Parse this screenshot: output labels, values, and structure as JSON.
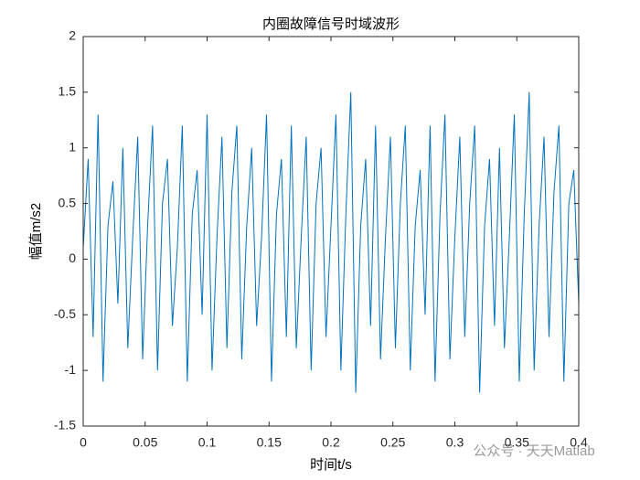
{
  "chart_data": {
    "type": "line",
    "title": "内圈故障信号时域波形",
    "xlabel": "时间t/s",
    "ylabel": "幅值m/s2",
    "watermark": "公众号 · 天天Matlab",
    "x": [
      0,
      0.004,
      0.008,
      0.012,
      0.016,
      0.02,
      0.024,
      0.028,
      0.032,
      0.036,
      0.04,
      0.044,
      0.048,
      0.052,
      0.056,
      0.06,
      0.064,
      0.068,
      0.072,
      0.076,
      0.08,
      0.084,
      0.088,
      0.092,
      0.096,
      0.1,
      0.104,
      0.108,
      0.112,
      0.116,
      0.12,
      0.124,
      0.128,
      0.132,
      0.136,
      0.14,
      0.144,
      0.148,
      0.152,
      0.156,
      0.16,
      0.164,
      0.168,
      0.172,
      0.176,
      0.18,
      0.184,
      0.188,
      0.192,
      0.196,
      0.2,
      0.204,
      0.208,
      0.212,
      0.216,
      0.22,
      0.224,
      0.228,
      0.232,
      0.236,
      0.24,
      0.244,
      0.248,
      0.252,
      0.256,
      0.26,
      0.264,
      0.268,
      0.272,
      0.276,
      0.28,
      0.284,
      0.288,
      0.292,
      0.296,
      0.3,
      0.304,
      0.308,
      0.312,
      0.316,
      0.32,
      0.324,
      0.328,
      0.332,
      0.336,
      0.34,
      0.344,
      0.348,
      0.352,
      0.356,
      0.36,
      0.364,
      0.368,
      0.372,
      0.376,
      0.38,
      0.384,
      0.388,
      0.392,
      0.396,
      0.4
    ],
    "series": [
      {
        "color": "#0072bd",
        "values": [
          0.1,
          0.9,
          -0.7,
          1.3,
          -1.1,
          0.3,
          0.7,
          -0.4,
          1.0,
          -0.8,
          0.2,
          1.1,
          -0.9,
          0.3,
          1.2,
          -1.0,
          0.5,
          0.9,
          -0.6,
          0.1,
          1.2,
          -1.1,
          0.4,
          0.8,
          -0.5,
          1.3,
          -1.0,
          0.2,
          1.1,
          -0.8,
          0.6,
          1.2,
          -0.9,
          0.3,
          1.0,
          -0.6,
          0.2,
          1.3,
          -1.1,
          0.4,
          0.9,
          -0.7,
          1.2,
          -0.8,
          0.2,
          1.1,
          -1.0,
          0.5,
          1.0,
          -0.7,
          0.3,
          1.3,
          -1.0,
          0.4,
          1.5,
          -1.2,
          0.3,
          0.9,
          -0.6,
          1.2,
          -0.9,
          0.2,
          1.1,
          -0.8,
          0.5,
          1.2,
          -1.0,
          0.3,
          0.8,
          -0.5,
          1.2,
          -1.1,
          0.4,
          1.3,
          -0.9,
          0.2,
          1.1,
          -0.7,
          0.5,
          1.2,
          -1.2,
          0.3,
          0.9,
          -0.6,
          1.0,
          -0.8,
          0.2,
          1.3,
          -1.1,
          0.4,
          1.5,
          -1.0,
          0.3,
          1.1,
          -0.7,
          0.6,
          1.2,
          -1.1,
          0.5,
          0.8,
          -0.4
        ]
      }
    ],
    "xlim": [
      0,
      0.4
    ],
    "xticks": [
      0,
      0.05,
      0.1,
      0.15,
      0.2,
      0.25,
      0.3,
      0.35,
      0.4
    ],
    "ylim": [
      -1.5,
      2
    ],
    "yticks": [
      -1.5,
      -1,
      -0.5,
      0,
      0.5,
      1,
      1.5,
      2
    ]
  }
}
